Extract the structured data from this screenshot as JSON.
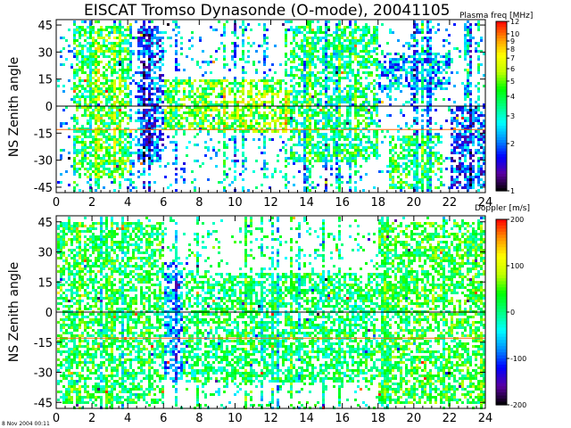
{
  "title": "EISCAT Tromso Dynasonde (O-mode),  20041105",
  "footer": "8 Nov 2004 00:11",
  "colors": {
    "background": "#ffffff",
    "reference_line": "#000000",
    "orange_line": "#ff6a00"
  },
  "chart_data": [
    {
      "type": "heatmap",
      "title": "EISCAT Tromso Dynasonde (O-mode),  20041105",
      "xlabel": "",
      "ylabel": "NS Zenith angle",
      "xlim": [
        0,
        24
      ],
      "ylim": [
        -48,
        48
      ],
      "x_ticks": [
        0,
        2,
        4,
        6,
        8,
        10,
        12,
        14,
        16,
        18,
        20,
        22,
        24
      ],
      "y_ticks": [
        45,
        30,
        15,
        0,
        -15,
        -30,
        -45
      ],
      "reference_lines": [
        0,
        -13
      ],
      "colorbar": {
        "label": "Plasma freq [MHz]",
        "scale": "log",
        "range": [
          1,
          12
        ],
        "ticks": [
          12,
          10,
          9,
          8,
          7,
          6,
          5,
          4,
          3,
          2,
          1
        ],
        "palette": [
          "#000000",
          "#5a00a0",
          "#0000ff",
          "#0090ff",
          "#00ffff",
          "#00ff80",
          "#00ff00",
          "#c0ff00",
          "#ffff00",
          "#ff9000",
          "#ff0000"
        ]
      },
      "regions": [
        {
          "x": [
            4.5,
            12.5
          ],
          "y": [
            -12,
            15
          ],
          "value": 4.5
        },
        {
          "x": [
            9,
            13.5
          ],
          "y": [
            -14,
            10
          ],
          "value": 5
        },
        {
          "x": [
            1,
            4
          ],
          "y": [
            -40,
            45
          ],
          "value": 4
        },
        {
          "x": [
            13,
            18
          ],
          "y": [
            -30,
            45
          ],
          "value": 3.5
        },
        {
          "x": [
            18,
            22
          ],
          "y": [
            10,
            30
          ],
          "value": 2.3
        },
        {
          "x": [
            18.5,
            21.5
          ],
          "y": [
            -45,
            -15
          ],
          "value": 3.8
        },
        {
          "x": [
            22,
            24
          ],
          "y": [
            -45,
            0
          ],
          "value": 1.8
        },
        {
          "x": [
            4.5,
            6
          ],
          "y": [
            -30,
            45
          ],
          "value": 1.9
        }
      ]
    },
    {
      "type": "heatmap",
      "title": "",
      "xlabel": "",
      "ylabel": "NS Zenith angle",
      "xlim": [
        0,
        24
      ],
      "ylim": [
        -48,
        48
      ],
      "x_ticks": [
        0,
        2,
        4,
        6,
        8,
        10,
        12,
        14,
        16,
        18,
        20,
        22,
        24
      ],
      "y_ticks": [
        45,
        30,
        15,
        0,
        -15,
        -30,
        -45
      ],
      "reference_lines": [
        0,
        -13
      ],
      "colorbar": {
        "label": "Doppler [m/s]",
        "scale": "linear",
        "range": [
          -200,
          200
        ],
        "ticks": [
          200,
          100,
          0,
          -100,
          -200
        ],
        "palette": [
          "#000000",
          "#5a00a0",
          "#0000ff",
          "#0090ff",
          "#00ffff",
          "#00ff80",
          "#00ff00",
          "#c0ff00",
          "#ffff00",
          "#ff9000",
          "#ff0000"
        ]
      },
      "regions": [
        {
          "x": [
            0,
            6
          ],
          "y": [
            -45,
            45
          ],
          "value": 20
        },
        {
          "x": [
            6,
            7
          ],
          "y": [
            -35,
            25
          ],
          "value": -70
        },
        {
          "x": [
            7,
            18
          ],
          "y": [
            -35,
            20
          ],
          "value": 10
        },
        {
          "x": [
            18,
            24
          ],
          "y": [
            -45,
            45
          ],
          "value": 30
        }
      ]
    }
  ]
}
